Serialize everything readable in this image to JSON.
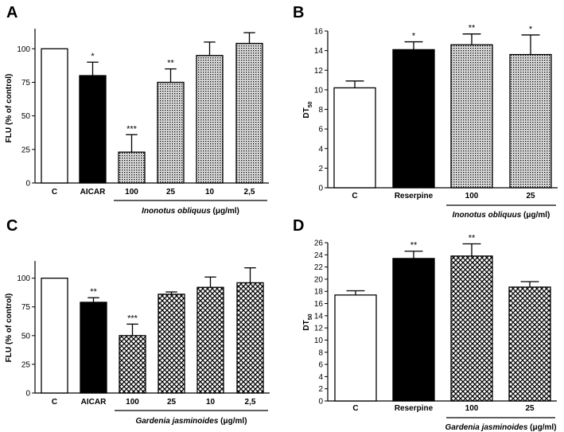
{
  "colors": {
    "white_bar": "#ffffff",
    "black_bar": "#000000",
    "outline": "#000000"
  },
  "chart_data": [
    {
      "panel": "A",
      "type": "bar",
      "ylabel": "FLU (% of control)",
      "ylim": [
        0,
        115
      ],
      "yticks": [
        0,
        25,
        50,
        75,
        100
      ],
      "categories": [
        "C",
        "AICAR",
        "100",
        "25",
        "10",
        "2,5"
      ],
      "values": [
        100,
        80,
        23,
        75,
        95,
        104
      ],
      "errors": [
        0,
        10,
        13,
        10,
        10,
        8
      ],
      "significance": [
        "",
        "*",
        "***",
        "**",
        "",
        ""
      ],
      "fills": [
        "white",
        "black",
        "dots",
        "dots",
        "dots",
        "dots"
      ],
      "group_label": {
        "name": "Inonotus obliquus",
        "unit": " (μg/ml)",
        "from": 2,
        "to": 5
      }
    },
    {
      "panel": "B",
      "type": "bar",
      "ylabel": "DT50",
      "ylim": [
        0,
        16
      ],
      "yticks": [
        0,
        2,
        4,
        6,
        8,
        10,
        12,
        14,
        16
      ],
      "categories": [
        "C",
        "Reserpine",
        "100",
        "25"
      ],
      "values": [
        10.2,
        14.1,
        14.6,
        13.6
      ],
      "errors": [
        0.7,
        0.8,
        1.1,
        2.0
      ],
      "significance": [
        "",
        "*",
        "**",
        "*"
      ],
      "fills": [
        "white",
        "black",
        "dots",
        "dots"
      ],
      "group_label": {
        "name": "Inonotus obliquus",
        "unit": " (μg/ml)",
        "from": 2,
        "to": 3
      }
    },
    {
      "panel": "C",
      "type": "bar",
      "ylabel": "FLU (% of control)",
      "ylim": [
        0,
        115
      ],
      "yticks": [
        0,
        25,
        50,
        75,
        100
      ],
      "categories": [
        "C",
        "AICAR",
        "100",
        "25",
        "10",
        "2,5"
      ],
      "values": [
        100,
        79,
        50,
        86,
        92,
        96
      ],
      "errors": [
        0,
        4,
        10,
        2,
        9,
        13
      ],
      "significance": [
        "",
        "**",
        "***",
        "",
        "",
        ""
      ],
      "fills": [
        "white",
        "black",
        "cross",
        "cross",
        "cross",
        "cross"
      ],
      "group_label": {
        "name": "Gardenia jasminoides",
        "unit": " (μg/ml)",
        "from": 2,
        "to": 5
      }
    },
    {
      "panel": "D",
      "type": "bar",
      "ylabel": "DT50",
      "ylim": [
        0,
        26
      ],
      "yticks": [
        0,
        2,
        4,
        6,
        8,
        10,
        12,
        14,
        16,
        18,
        20,
        22,
        24,
        26
      ],
      "categories": [
        "C",
        "Reserpine",
        "100",
        "25"
      ],
      "values": [
        17.4,
        23.4,
        23.8,
        18.7
      ],
      "errors": [
        0.7,
        1.2,
        2.0,
        0.9
      ],
      "significance": [
        "",
        "**",
        "**",
        ""
      ],
      "fills": [
        "white",
        "black",
        "cross",
        "cross"
      ],
      "group_label": {
        "name": "Gardenia jasminoides",
        "unit": " (μg/ml)",
        "from": 2,
        "to": 3
      }
    }
  ]
}
